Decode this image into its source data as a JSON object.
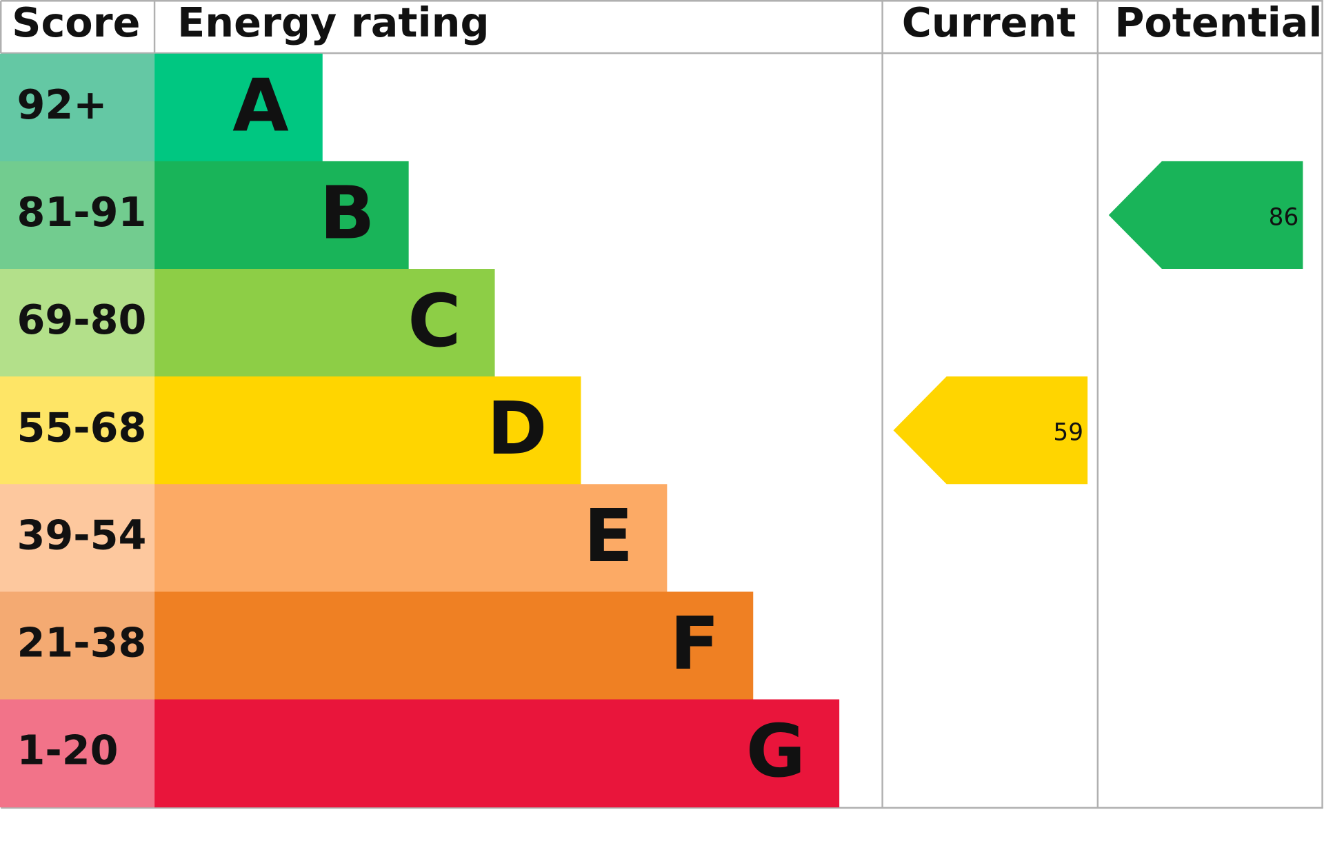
{
  "header": {
    "score": "Score",
    "rating": "Energy rating",
    "current": "Current",
    "potential": "Potential"
  },
  "bands": [
    {
      "score": "92+",
      "rating": "A",
      "score_color": "#64c8a4",
      "color": "#00c781"
    },
    {
      "score": "81-91",
      "rating": "B",
      "score_color": "#72cc8f",
      "color": "#19b459"
    },
    {
      "score": "69-80",
      "rating": "C",
      "score_color": "#b3e08a",
      "color": "#8dce46"
    },
    {
      "score": "55-68",
      "rating": "D",
      "score_color": "#fee566",
      "color": "#ffd500"
    },
    {
      "score": "39-54",
      "rating": "E",
      "score_color": "#fdc89e",
      "color": "#fcaa65"
    },
    {
      "score": "21-38",
      "rating": "F",
      "score_color": "#f4aa72",
      "color": "#ef8023"
    },
    {
      "score": "1-20",
      "rating": "G",
      "score_color": "#f27389",
      "color": "#e9153b"
    }
  ],
  "current": {
    "value": 59
  },
  "potential": {
    "value": 86
  }
}
